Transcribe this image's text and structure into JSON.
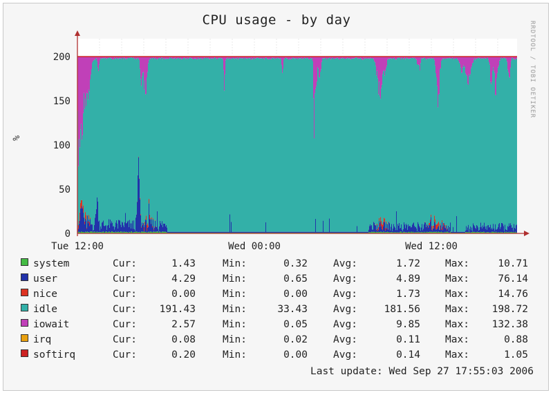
{
  "chart_data": {
    "type": "area",
    "title": "CPU usage - by day",
    "ylabel": "%",
    "ylim": [
      0,
      200
    ],
    "y_ticks": [
      0,
      50,
      100,
      150,
      200
    ],
    "x_ticks": [
      "Tue 12:00",
      "Wed 00:00",
      "Wed 12:00"
    ],
    "grid": true,
    "stacked": true,
    "watermark": "RRDTOOL / TOBI OETIKER",
    "series": [
      {
        "name": "system",
        "color": "#44bb44",
        "cur": "1.43",
        "min": "0.32",
        "avg": "1.72",
        "max": "10.71"
      },
      {
        "name": "user",
        "color": "#2233aa",
        "cur": "4.29",
        "min": "0.65",
        "avg": "4.89",
        "max": "76.14"
      },
      {
        "name": "nice",
        "color": "#dd3322",
        "cur": "0.00",
        "min": "0.00",
        "avg": "1.73",
        "max": "14.76"
      },
      {
        "name": "idle",
        "color": "#33b0a8",
        "cur": "191.43",
        "min": "33.43",
        "avg": "181.56",
        "max": "198.72"
      },
      {
        "name": "iowait",
        "color": "#c040b8",
        "cur": "2.57",
        "min": "0.05",
        "avg": "9.85",
        "max": "132.38"
      },
      {
        "name": "irq",
        "color": "#e8a010",
        "cur": "0.08",
        "min": "0.02",
        "avg": "0.11",
        "max": "0.88"
      },
      {
        "name": "softirq",
        "color": "#cc2222",
        "cur": "0.20",
        "min": "0.00",
        "avg": "0.14",
        "max": "1.05"
      }
    ],
    "stat_labels": {
      "cur": "Cur:",
      "min": "Min:",
      "avg": "Avg:",
      "max": "Max:"
    },
    "last_update": "Last update: Wed Sep 27 17:55:03 2006"
  }
}
